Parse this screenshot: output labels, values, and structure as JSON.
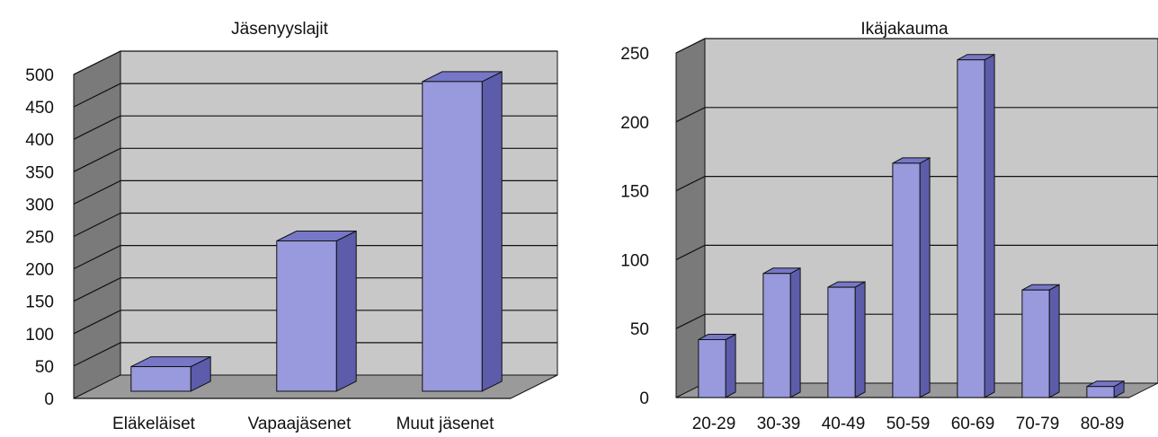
{
  "chart_data": [
    {
      "type": "bar",
      "title": "Jäsenyyslajit",
      "categories": [
        "Eläkeläiset",
        "Vapaajäsenet",
        "Muut jäsenet"
      ],
      "values": [
        38,
        232,
        478
      ],
      "ylim": [
        0,
        500
      ],
      "yticks": [
        0,
        50,
        100,
        150,
        200,
        250,
        300,
        350,
        400,
        450,
        500
      ],
      "xlabel": "",
      "ylabel": "",
      "grid": true,
      "legend": "none",
      "three_d": true,
      "colors": {
        "bar_front": "#9999dd",
        "bar_side": "#5c5cab",
        "bar_top": "#7777c8",
        "back_wall": "#c8c8c8",
        "side_wall": "#7a7a7a",
        "floor": "#9a9a9a"
      }
    },
    {
      "type": "bar",
      "title": "Ikäjakauma",
      "categories": [
        "20-29",
        "30-39",
        "40-49",
        "50-59",
        "60-69",
        "70-79",
        "80-89"
      ],
      "values": [
        42,
        90,
        80,
        170,
        245,
        78,
        8
      ],
      "ylim": [
        0,
        250
      ],
      "yticks": [
        0,
        50,
        100,
        150,
        200,
        250
      ],
      "xlabel": "",
      "ylabel": "",
      "grid": true,
      "legend": "none",
      "three_d": true,
      "colors": {
        "bar_front": "#9999dd",
        "bar_side": "#5c5cab",
        "bar_top": "#7777c8",
        "back_wall": "#c8c8c8",
        "side_wall": "#7a7a7a",
        "floor": "#9a9a9a"
      }
    }
  ]
}
